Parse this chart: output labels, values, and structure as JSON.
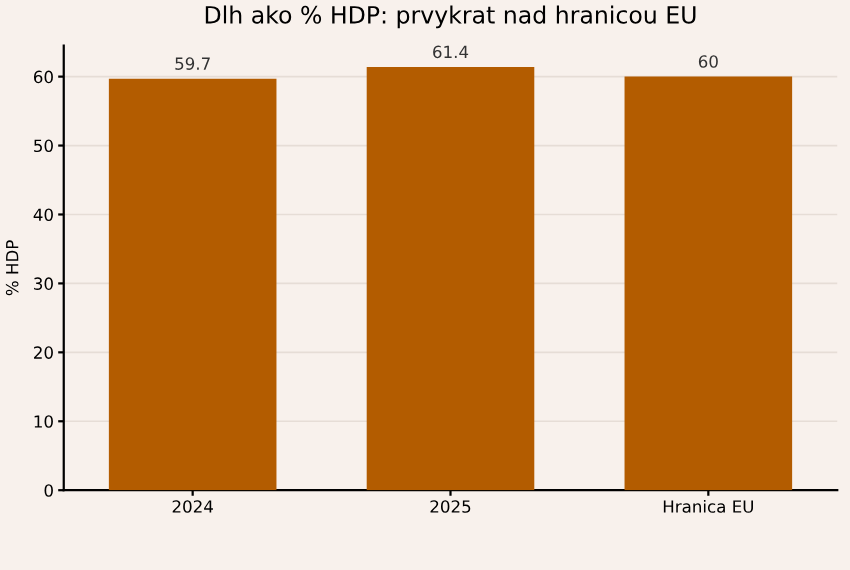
{
  "chart_data": {
    "type": "bar",
    "title": "Dlh ako % HDP: prvykrat nad hranicou EU",
    "ylabel": "% HDP",
    "categories": [
      "2024",
      "2025",
      "Hranica EU"
    ],
    "values": [
      59.7,
      61.4,
      60
    ],
    "color": "#b35c00",
    "ylim": [
      0,
      64.5
    ],
    "yticks": [
      0,
      10,
      20,
      30,
      40,
      50,
      60
    ],
    "grid": "y",
    "data_labels": true,
    "legend": false
  }
}
